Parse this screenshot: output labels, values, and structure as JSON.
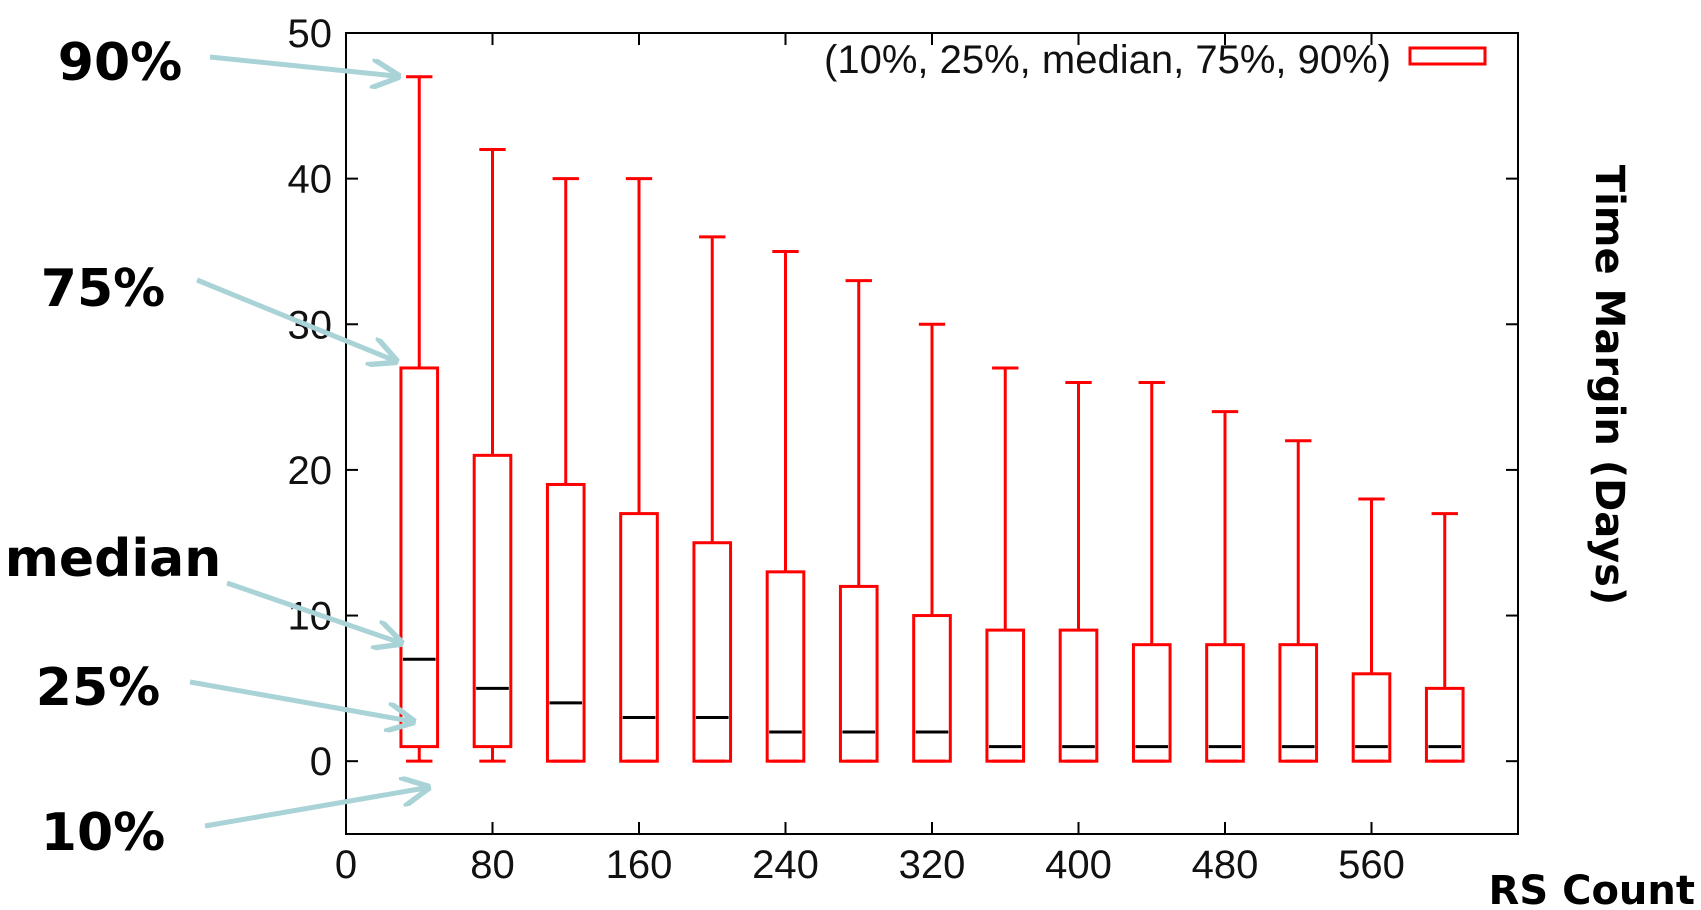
{
  "chart_data": {
    "type": "box",
    "ylabel": "Time Margin (Days)",
    "xlabel": "RS Count",
    "xlim": [
      0,
      640
    ],
    "ylim": [
      -5,
      50
    ],
    "x_ticks": [
      0,
      80,
      160,
      240,
      320,
      400,
      480,
      560
    ],
    "y_ticks": [
      0,
      10,
      20,
      30,
      40,
      50
    ],
    "legend": {
      "label": "(10%, 25%, median, 75%, 90%)",
      "position": "top-right"
    },
    "box_width": 20,
    "boxes": [
      {
        "x": 40,
        "p10": 0,
        "p25": 1,
        "median": 7,
        "p75": 27,
        "p90": 47
      },
      {
        "x": 80,
        "p10": 0,
        "p25": 1,
        "median": 5,
        "p75": 21,
        "p90": 42
      },
      {
        "x": 120,
        "p10": 0,
        "p25": 0,
        "median": 4,
        "p75": 19,
        "p90": 40
      },
      {
        "x": 160,
        "p10": 0,
        "p25": 0,
        "median": 3,
        "p75": 17,
        "p90": 40
      },
      {
        "x": 200,
        "p10": 0,
        "p25": 0,
        "median": 3,
        "p75": 15,
        "p90": 36
      },
      {
        "x": 240,
        "p10": 0,
        "p25": 0,
        "median": 2,
        "p75": 13,
        "p90": 35
      },
      {
        "x": 280,
        "p10": 0,
        "p25": 0,
        "median": 2,
        "p75": 12,
        "p90": 33
      },
      {
        "x": 320,
        "p10": 0,
        "p25": 0,
        "median": 2,
        "p75": 10,
        "p90": 30
      },
      {
        "x": 360,
        "p10": 0,
        "p25": 0,
        "median": 1,
        "p75": 9,
        "p90": 27
      },
      {
        "x": 400,
        "p10": 0,
        "p25": 0,
        "median": 1,
        "p75": 9,
        "p90": 26
      },
      {
        "x": 440,
        "p10": 0,
        "p25": 0,
        "median": 1,
        "p75": 8,
        "p90": 26
      },
      {
        "x": 480,
        "p10": 0,
        "p25": 0,
        "median": 1,
        "p75": 8,
        "p90": 24
      },
      {
        "x": 520,
        "p10": 0,
        "p25": 0,
        "median": 1,
        "p75": 8,
        "p90": 22
      },
      {
        "x": 560,
        "p10": 0,
        "p25": 0,
        "median": 1,
        "p75": 6,
        "p90": 18
      },
      {
        "x": 600,
        "p10": 0,
        "p25": 0,
        "median": 1,
        "p75": 5,
        "p90": 17
      }
    ],
    "annotations": [
      {
        "text": "90%",
        "points_to": "p90"
      },
      {
        "text": "75%",
        "points_to": "p75"
      },
      {
        "text": "median",
        "points_to": "median"
      },
      {
        "text": "25%",
        "points_to": "p25"
      },
      {
        "text": "10%",
        "points_to": "p10"
      }
    ],
    "colors": {
      "box": "#ff0000",
      "median": "#000000",
      "arrow": "#a9d3d6",
      "axis": "#000000"
    }
  }
}
